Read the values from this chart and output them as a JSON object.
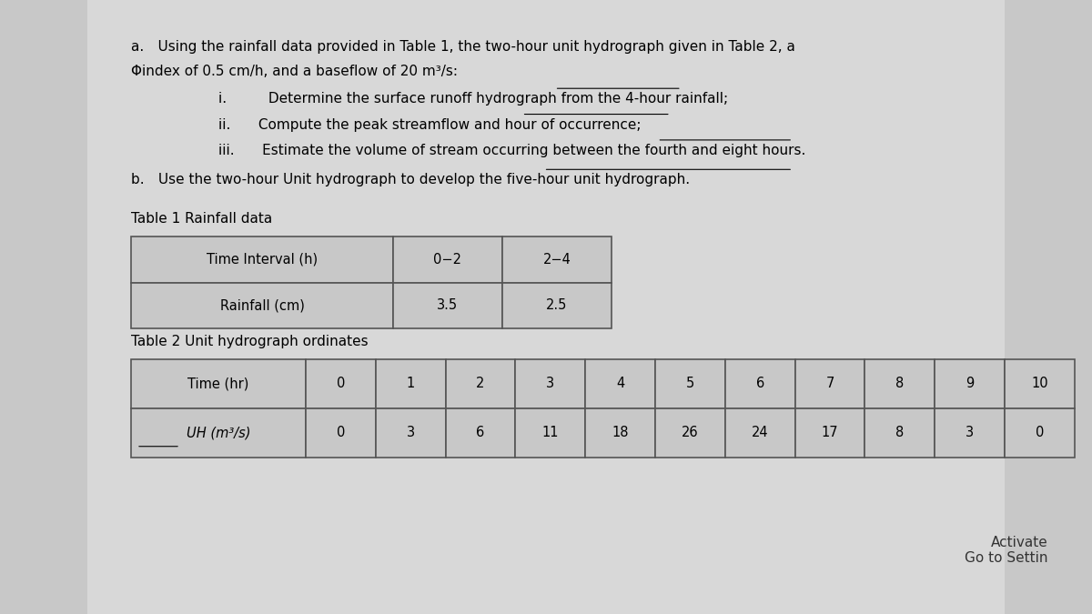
{
  "bg_color": "#c8c8c8",
  "paper_color": "#d8d8d8",
  "text_color": "#000000",
  "title_a": "a. Using the rainfall data provided in Table 1, the two-hour unit hydrograph given in Table 2, a",
  "title_a2": "Φindex of 0.5 cm/h, and a baseflow of 20 m³/s:",
  "item_i": "i.   Determine the surface runoff hydrograph from the 4-hour rainfall;",
  "item_ii": "ii.  Compute the peak streamflow and hour of occurrence;",
  "item_iii": "iii.  Estimate the volume of stream occurring between the fourth and eight hours.",
  "item_b": "b. Use the two-hour Unit hydrograph to develop the five-hour unit hydrograph.",
  "table1_title": "Table 1 Rainfall data",
  "table1_headers": [
    "Time Interval (h)",
    "0−2",
    "2−4"
  ],
  "table1_values": [
    "Rainfall (cm)",
    "3.5",
    "2.5"
  ],
  "table2_title": "Table 2 Unit hydrograph ordinates",
  "table2_time_header": "Time (hr)",
  "table2_uh_header": "UH (m³/s)",
  "table2_times": [
    "0",
    "1",
    "2",
    "3",
    "4",
    "5",
    "6",
    "7",
    "8",
    "9",
    "10"
  ],
  "table2_uh": [
    "0",
    "3",
    "6",
    "11",
    "18",
    "26",
    "24",
    "17",
    "8",
    "3",
    "0"
  ],
  "watermark": "Activate\nGo to Settin"
}
